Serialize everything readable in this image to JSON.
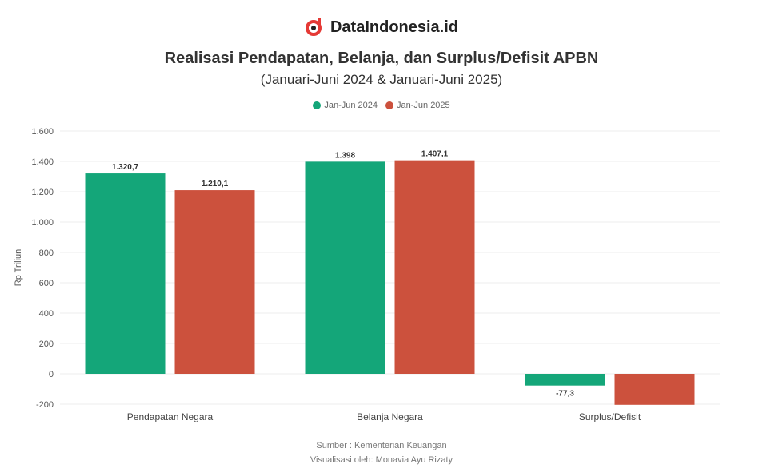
{
  "brand": {
    "name": "DataIndonesia.id",
    "logo_color": "#e53935"
  },
  "chart_data": {
    "type": "bar",
    "title": "Realisasi Pendapatan, Belanja, dan Surplus/Defisit APBN",
    "subtitle": "(Januari-Juni 2024 & Januari-Juni 2025)",
    "ylabel": "Rp Triliun",
    "xlabel": "",
    "ylim": [
      -200,
      1600
    ],
    "yticks": [
      -200,
      0,
      200,
      400,
      600,
      800,
      1000,
      1200,
      1400,
      1600
    ],
    "ytick_labels": [
      "-200",
      "0",
      "200",
      "400",
      "600",
      "800",
      "1.000",
      "1.200",
      "1.400",
      "1.600"
    ],
    "categories": [
      "Pendapatan Negara",
      "Belanja Negara",
      "Surplus/Defisit"
    ],
    "grid": true,
    "legend_position": "top",
    "series": [
      {
        "name": "Jan-Jun 2024",
        "color": "#14a679",
        "values": [
          1320.7,
          1398,
          -77.3
        ],
        "labels": [
          "1.320,7",
          "1.398",
          "-77,3"
        ]
      },
      {
        "name": "Jan-Jun 2025",
        "color": "#cc513d",
        "values": [
          1210.1,
          1407.1,
          -204.2
        ],
        "labels": [
          "1.210,1",
          "1.407,1",
          ""
        ]
      }
    ]
  },
  "footer": {
    "source": "Sumber : Kementerian Keuangan",
    "visual": "Visualisasi oleh: Monavia Ayu Rizaty"
  }
}
